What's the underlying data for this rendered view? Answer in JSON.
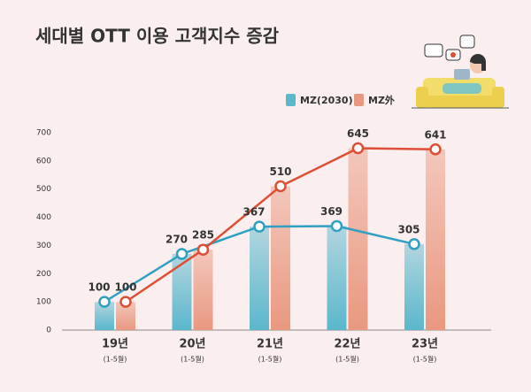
{
  "chart_data": {
    "type": "bar",
    "title": "세대별 OTT 이용 고객지수 증감",
    "categories": [
      "19년",
      "20년",
      "21년",
      "22년",
      "23년"
    ],
    "category_notes": [
      "(1-5월)",
      "(1-5월)",
      "(1-5월)",
      "(1-5월)",
      "(1-5월)"
    ],
    "series": [
      {
        "name": "MZ(2030)",
        "color": "#2f9fc2",
        "bar_color": "#5ab7cc",
        "values": [
          100,
          270,
          367,
          369,
          305
        ]
      },
      {
        "name": "MZ外",
        "color": "#dd4f35",
        "bar_color": "#e9987f",
        "values": [
          100,
          285,
          510,
          645,
          641
        ]
      }
    ],
    "ylim": [
      0,
      700
    ],
    "yticks": [
      0,
      100,
      200,
      300,
      400,
      500,
      600,
      700
    ],
    "grid": false
  }
}
